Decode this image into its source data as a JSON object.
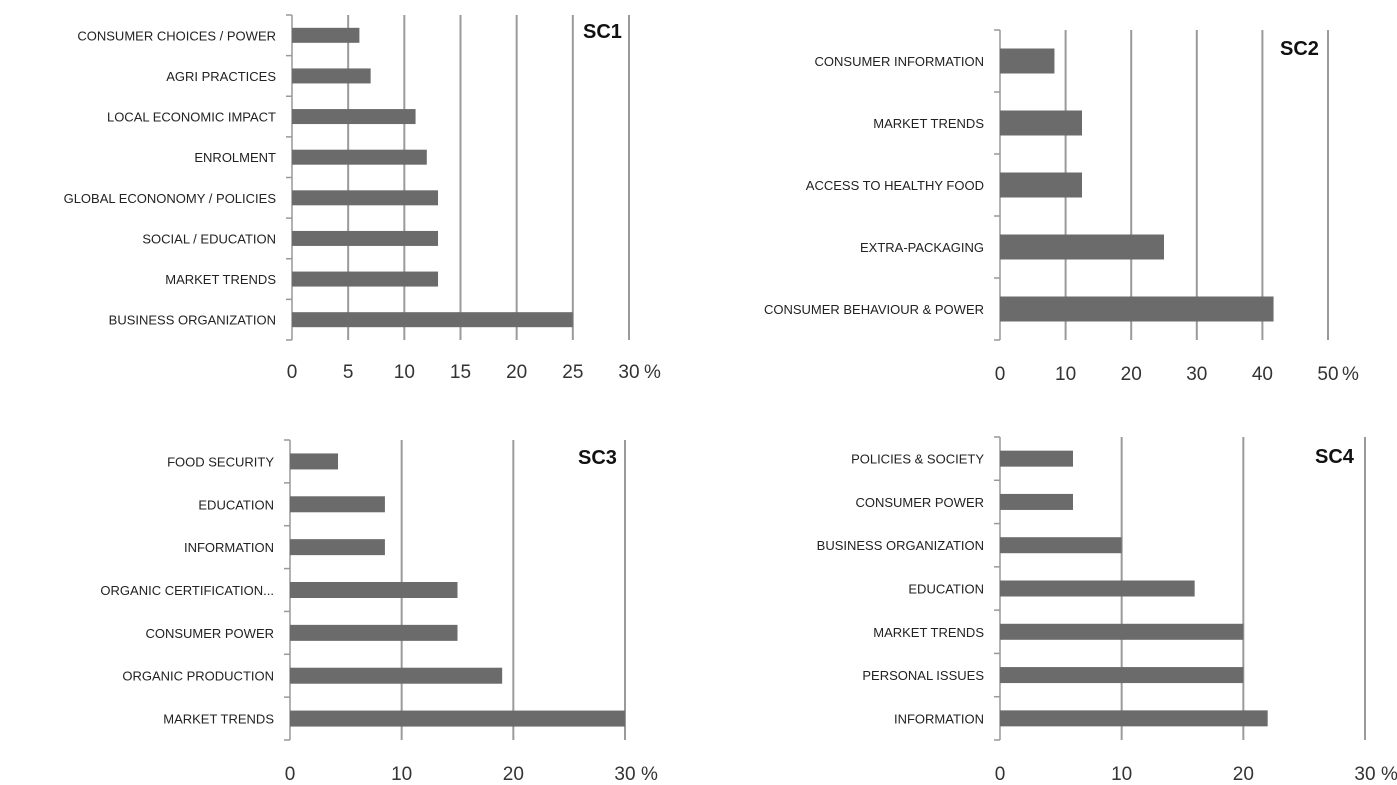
{
  "chart_data": [
    {
      "type": "bar",
      "orientation": "horizontal",
      "title": "SC1",
      "categories": [
        "BUSINESS ORGANIZATION",
        "MARKET TRENDS",
        "SOCIAL / EDUCATION",
        "GLOBAL ECONONOMY / POLICIES",
        "ENROLMENT",
        "LOCAL ECONOMIC IMPACT",
        "AGRI PRACTICES",
        "CONSUMER CHOICES / POWER"
      ],
      "values": [
        25,
        13,
        13,
        13,
        12,
        11,
        7,
        6
      ],
      "xlim": [
        0,
        30
      ],
      "xticks": [
        0,
        5,
        10,
        15,
        20,
        25,
        30
      ],
      "unit": "%",
      "grid": true
    },
    {
      "type": "bar",
      "orientation": "horizontal",
      "title": "SC2",
      "categories": [
        "CONSUMER BEHAVIOUR & POWER",
        "EXTRA-PACKAGING",
        "ACCESS TO HEALTHY FOOD",
        "MARKET TRENDS",
        "CONSUMER INFORMATION"
      ],
      "values": [
        41.7,
        25,
        12.5,
        12.5,
        8.3
      ],
      "xlim": [
        0,
        50
      ],
      "xticks": [
        0,
        10,
        20,
        30,
        40,
        50
      ],
      "unit": "%",
      "grid": true
    },
    {
      "type": "bar",
      "orientation": "horizontal",
      "title": "SC3",
      "categories": [
        "MARKET TRENDS",
        "ORGANIC PRODUCTION",
        "CONSUMER POWER",
        "ORGANIC CERTIFICATION...",
        "INFORMATION",
        "EDUCATION",
        "FOOD SECURITY"
      ],
      "values": [
        30,
        19,
        15,
        15,
        8.5,
        8.5,
        4.3
      ],
      "xlim": [
        0,
        30
      ],
      "xticks": [
        0,
        10,
        20,
        30
      ],
      "unit": "%",
      "grid": true
    },
    {
      "type": "bar",
      "orientation": "horizontal",
      "title": "SC4",
      "categories": [
        "INFORMATION",
        "PERSONAL ISSUES",
        "MARKET TRENDS",
        "EDUCATION",
        "BUSINESS ORGANIZATION",
        "CONSUMER POWER",
        "POLICIES & SOCIETY"
      ],
      "values": [
        22,
        20,
        20,
        16,
        10,
        6,
        6
      ],
      "xlim": [
        0,
        30
      ],
      "xticks": [
        0,
        10,
        20,
        30
      ],
      "unit": "%",
      "grid": true
    }
  ],
  "colors": {
    "bar": "#6b6b6b",
    "grid": "#9a9a9a",
    "axis": "#999999"
  }
}
